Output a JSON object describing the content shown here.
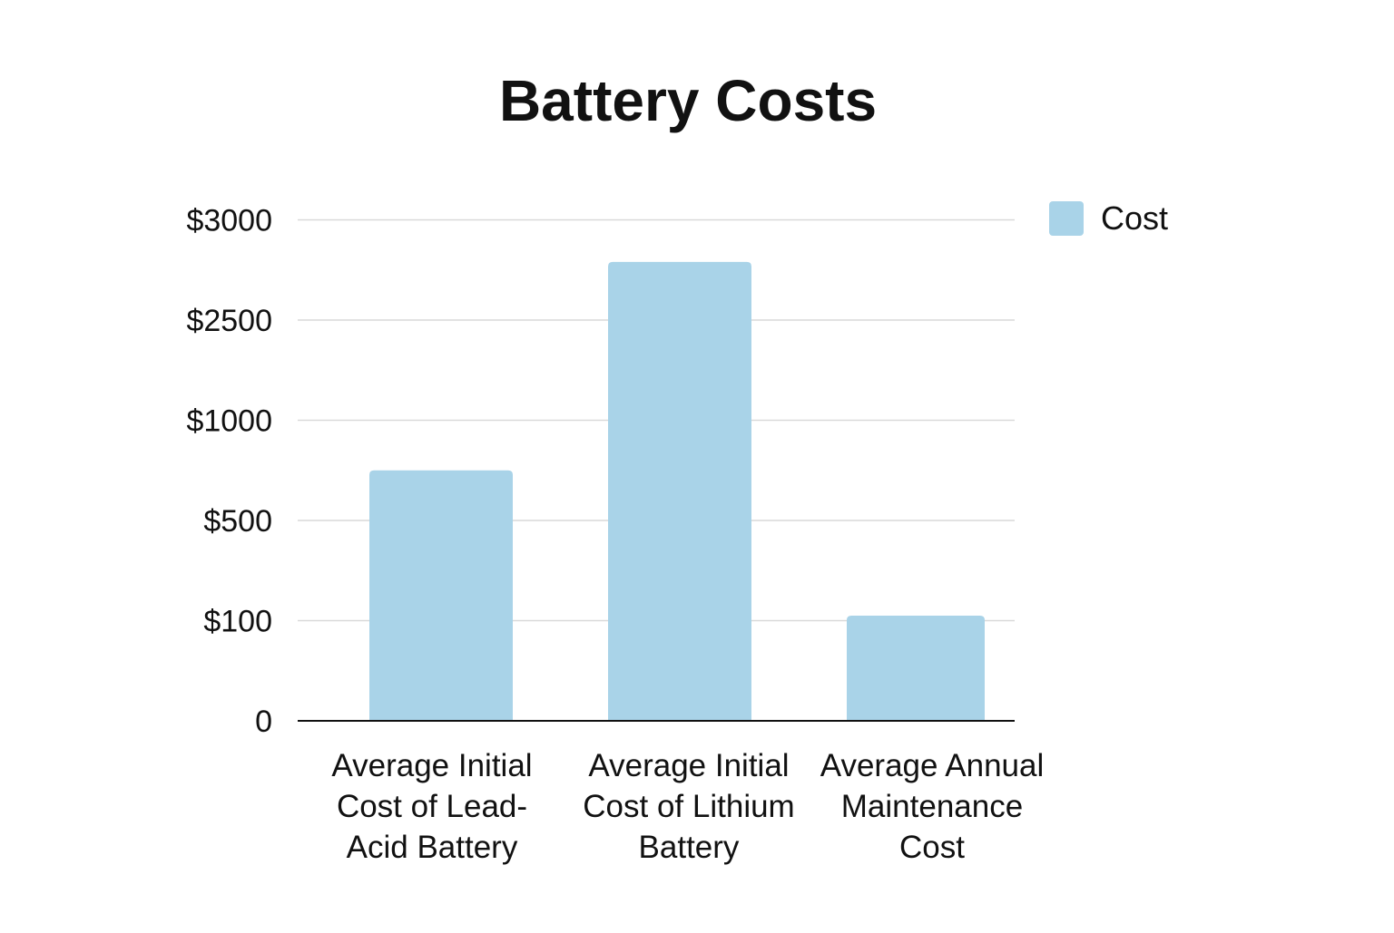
{
  "chart_data": {
    "type": "bar",
    "title": "Battery Costs",
    "xlabel": "",
    "ylabel": "",
    "categories": [
      [
        "Average Initial",
        "Cost of Lead-",
        "Acid Battery"
      ],
      [
        "Average Initial",
        "Cost of Lithium",
        "Battery"
      ],
      [
        "Average Annual",
        "Maintenance",
        "Cost"
      ]
    ],
    "series": [
      {
        "name": "Cost",
        "values": [
          750,
          2790,
          120
        ]
      }
    ],
    "y_ticks": [
      {
        "value": 0,
        "label": "0"
      },
      {
        "value": 100,
        "label": "$100"
      },
      {
        "value": 500,
        "label": "$500"
      },
      {
        "value": 1000,
        "label": "$1000"
      },
      {
        "value": 2500,
        "label": "$2500"
      },
      {
        "value": 3000,
        "label": "$3000"
      }
    ],
    "y_scale_note": "ticks are evenly spaced but non-linear; bar heights interpolated piecewise between ticks",
    "ylim": [
      0,
      3000
    ],
    "grid": true,
    "legend": {
      "position": "top-right",
      "entries": [
        "Cost"
      ]
    },
    "colors": {
      "bar": "#a9d3e8",
      "grid": "#d9d9d9",
      "axis": "#111111",
      "text": "#111111"
    }
  }
}
